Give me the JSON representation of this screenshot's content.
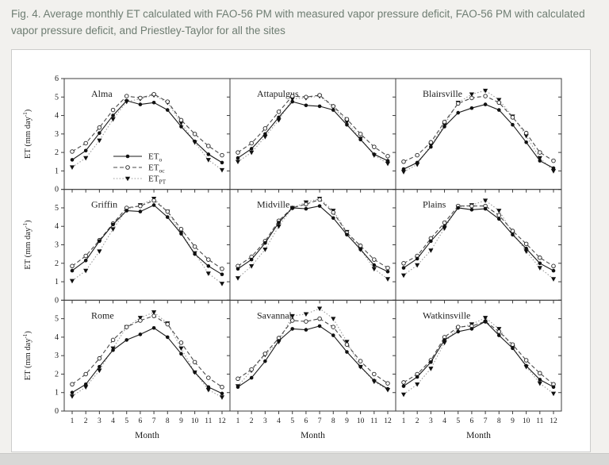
{
  "caption": "Fig. 4. Average monthly ET calculated with FAO-56 PM with measured vapor pressure deficit, FAO-56 PM with calculated vapor pressure deficit, and Priestley-Taylor for all the sites",
  "chart_data": {
    "type": "line",
    "grid": "3x3 small multiples, shared axes",
    "xlabel": "Month",
    "ylabel": "ET (mm day-1)",
    "ylabel_sup": "-1",
    "xlim": [
      1,
      12
    ],
    "ylim": [
      0,
      6
    ],
    "x": [
      1,
      2,
      3,
      4,
      5,
      6,
      7,
      8,
      9,
      10,
      11,
      12
    ],
    "legend_position": "inside first panel (Alma), middle-left",
    "axis_color": "#3c3c3c",
    "series_meta": [
      {
        "id": "ETo",
        "label_main": "ET",
        "label_sub": "o",
        "line": "solid",
        "marker": "filled-circle",
        "color": "#1a1a1a"
      },
      {
        "id": "EToc",
        "label_main": "ET",
        "label_sub": "oc",
        "line": "dashed",
        "marker": "open-circle",
        "color": "#4a4a4a"
      },
      {
        "id": "ETpt",
        "label_main": "ET",
        "label_sub": "PT",
        "line": "dotted",
        "marker": "filled-triangle-down",
        "color": "#9a9a9a"
      }
    ],
    "panels": [
      {
        "site": "Alma",
        "ETo": [
          1.6,
          2.1,
          3.05,
          4.0,
          4.8,
          4.6,
          4.7,
          4.3,
          3.4,
          2.6,
          1.9,
          1.45
        ],
        "EToc": [
          2.05,
          2.5,
          3.35,
          4.3,
          5.05,
          4.95,
          5.15,
          4.75,
          3.75,
          3.0,
          2.35,
          1.85
        ],
        "ETpt": [
          1.2,
          1.7,
          2.65,
          3.8,
          4.75,
          4.9,
          5.1,
          4.7,
          3.6,
          2.55,
          1.6,
          1.05
        ]
      },
      {
        "site": "Attapulgus",
        "ETo": [
          1.7,
          2.2,
          3.0,
          3.9,
          4.75,
          4.55,
          4.5,
          4.3,
          3.5,
          2.7,
          1.9,
          1.55
        ],
        "EToc": [
          2.0,
          2.5,
          3.3,
          4.2,
          5.05,
          5.0,
          5.1,
          4.5,
          3.8,
          3.0,
          2.3,
          1.8
        ],
        "ETpt": [
          1.5,
          2.0,
          2.85,
          3.75,
          4.9,
          4.95,
          5.05,
          4.45,
          3.65,
          2.75,
          1.85,
          1.4
        ]
      },
      {
        "site": "Blairsville",
        "ETo": [
          1.1,
          1.45,
          2.3,
          3.4,
          4.15,
          4.4,
          4.6,
          4.3,
          3.5,
          2.55,
          1.55,
          1.15
        ],
        "EToc": [
          1.5,
          1.85,
          2.55,
          3.65,
          4.65,
          4.95,
          5.05,
          4.7,
          3.9,
          3.05,
          2.0,
          1.55
        ],
        "ETpt": [
          0.95,
          1.35,
          2.4,
          3.5,
          4.7,
          5.15,
          5.35,
          4.85,
          3.95,
          2.9,
          1.7,
          1.0
        ]
      },
      {
        "site": "Griffin",
        "ETo": [
          1.6,
          2.15,
          3.2,
          4.1,
          4.85,
          4.8,
          5.15,
          4.5,
          3.6,
          2.5,
          1.85,
          1.4
        ],
        "EToc": [
          1.85,
          2.4,
          3.25,
          4.15,
          5.0,
          5.1,
          5.4,
          4.8,
          3.85,
          2.9,
          2.2,
          1.7
        ],
        "ETpt": [
          1.05,
          1.6,
          2.65,
          3.85,
          4.9,
          5.15,
          5.5,
          4.8,
          3.65,
          2.55,
          1.45,
          0.9
        ]
      },
      {
        "site": "Midville",
        "ETo": [
          1.7,
          2.2,
          3.1,
          4.2,
          5.0,
          4.95,
          5.1,
          4.45,
          3.55,
          2.75,
          1.9,
          1.55
        ],
        "EToc": [
          1.85,
          2.35,
          3.2,
          4.3,
          5.0,
          5.2,
          5.45,
          4.75,
          3.65,
          2.95,
          2.2,
          1.75
        ],
        "ETpt": [
          1.2,
          1.85,
          2.75,
          4.0,
          5.0,
          5.3,
          5.5,
          4.85,
          3.7,
          2.75,
          1.7,
          1.15
        ]
      },
      {
        "site": "Plains",
        "ETo": [
          1.75,
          2.25,
          3.2,
          4.0,
          5.0,
          4.9,
          4.95,
          4.4,
          3.55,
          2.8,
          2.0,
          1.6
        ],
        "EToc": [
          2.0,
          2.4,
          3.35,
          4.2,
          5.1,
          5.1,
          5.1,
          4.6,
          3.75,
          3.05,
          2.3,
          1.85
        ],
        "ETpt": [
          1.35,
          1.9,
          2.7,
          3.9,
          5.05,
          5.15,
          5.4,
          4.85,
          3.65,
          2.65,
          1.75,
          1.15
        ]
      },
      {
        "site": "Rome",
        "ETo": [
          1.0,
          1.45,
          2.4,
          3.3,
          3.85,
          4.15,
          4.5,
          4.0,
          3.1,
          2.1,
          1.3,
          0.95
        ],
        "EToc": [
          1.45,
          2.0,
          2.85,
          3.85,
          4.55,
          4.9,
          5.15,
          4.7,
          3.7,
          2.65,
          1.8,
          1.3
        ],
        "ETpt": [
          0.8,
          1.3,
          2.2,
          3.4,
          4.55,
          5.05,
          5.35,
          4.75,
          3.4,
          2.1,
          1.15,
          0.75
        ]
      },
      {
        "site": "Savannah",
        "ETo": [
          1.3,
          1.8,
          2.7,
          3.8,
          4.45,
          4.4,
          4.6,
          4.1,
          3.2,
          2.4,
          1.65,
          1.2
        ],
        "EToc": [
          1.75,
          2.25,
          3.1,
          3.95,
          4.9,
          4.85,
          5.0,
          4.55,
          3.6,
          2.7,
          2.0,
          1.5
        ],
        "ETpt": [
          1.35,
          2.2,
          3.05,
          3.75,
          5.15,
          5.25,
          5.55,
          5.0,
          3.75,
          2.4,
          1.6,
          1.15
        ]
      },
      {
        "site": "Watkinsville",
        "ETo": [
          1.35,
          1.85,
          2.65,
          3.85,
          4.3,
          4.45,
          4.85,
          4.1,
          3.4,
          2.45,
          1.7,
          1.3
        ],
        "EToc": [
          1.55,
          2.0,
          2.75,
          4.0,
          4.55,
          4.6,
          4.85,
          4.3,
          3.6,
          2.75,
          2.05,
          1.45
        ],
        "ETpt": [
          0.9,
          1.45,
          2.3,
          3.7,
          4.5,
          4.7,
          5.05,
          4.45,
          3.45,
          2.4,
          1.5,
          0.95
        ]
      }
    ]
  }
}
